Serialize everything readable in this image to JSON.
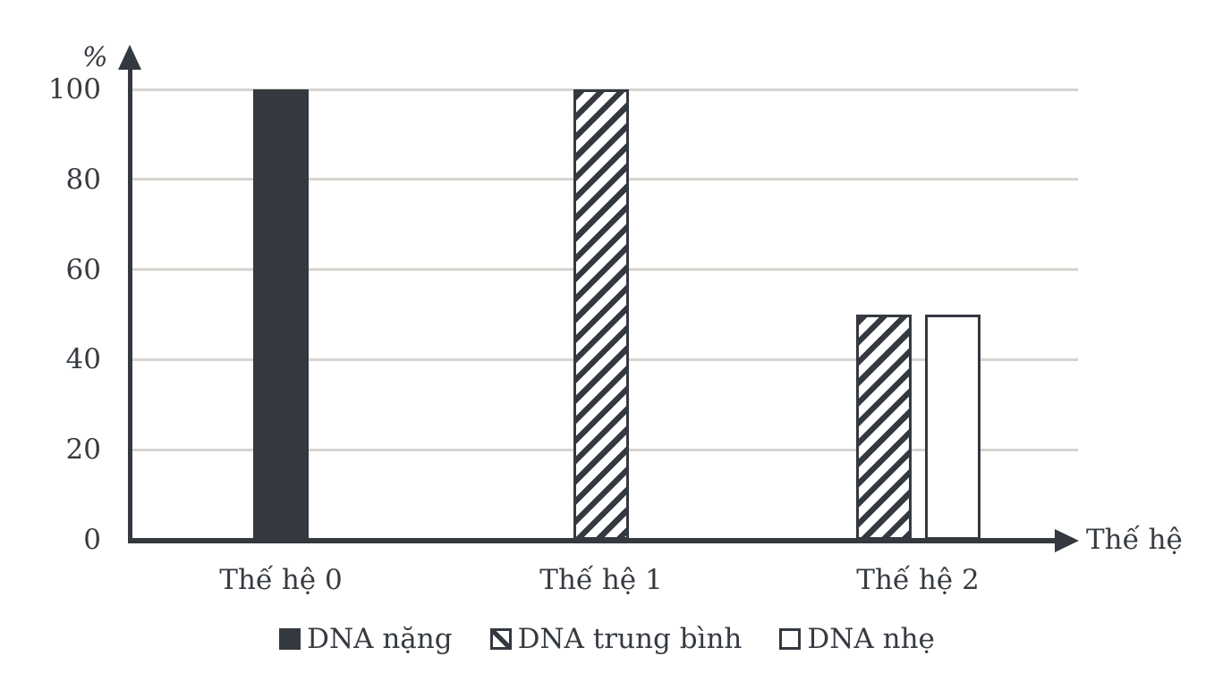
{
  "chart_data": {
    "type": "bar",
    "title": "",
    "categories": [
      "Thế hệ 0",
      "Thế hệ 1",
      "Thế hệ 2"
    ],
    "series": [
      {
        "name": "DNA nặng",
        "style": "solid",
        "values": [
          100,
          null,
          null
        ]
      },
      {
        "name": "DNA trung bình",
        "style": "hatched",
        "values": [
          null,
          100,
          50
        ]
      },
      {
        "name": "DNA nhẹ",
        "style": "open",
        "values": [
          null,
          null,
          50
        ]
      }
    ],
    "ylabel": "%",
    "xlabel": "Thế hệ",
    "yticks": [
      0,
      20,
      40,
      60,
      80,
      100
    ],
    "ylim": [
      0,
      100
    ],
    "grid": true,
    "legend_position": "bottom",
    "colors": {
      "bar_dark": "#343940",
      "grid": "#d7d4cf",
      "text": "#363b41",
      "background": "#ffffff"
    }
  }
}
